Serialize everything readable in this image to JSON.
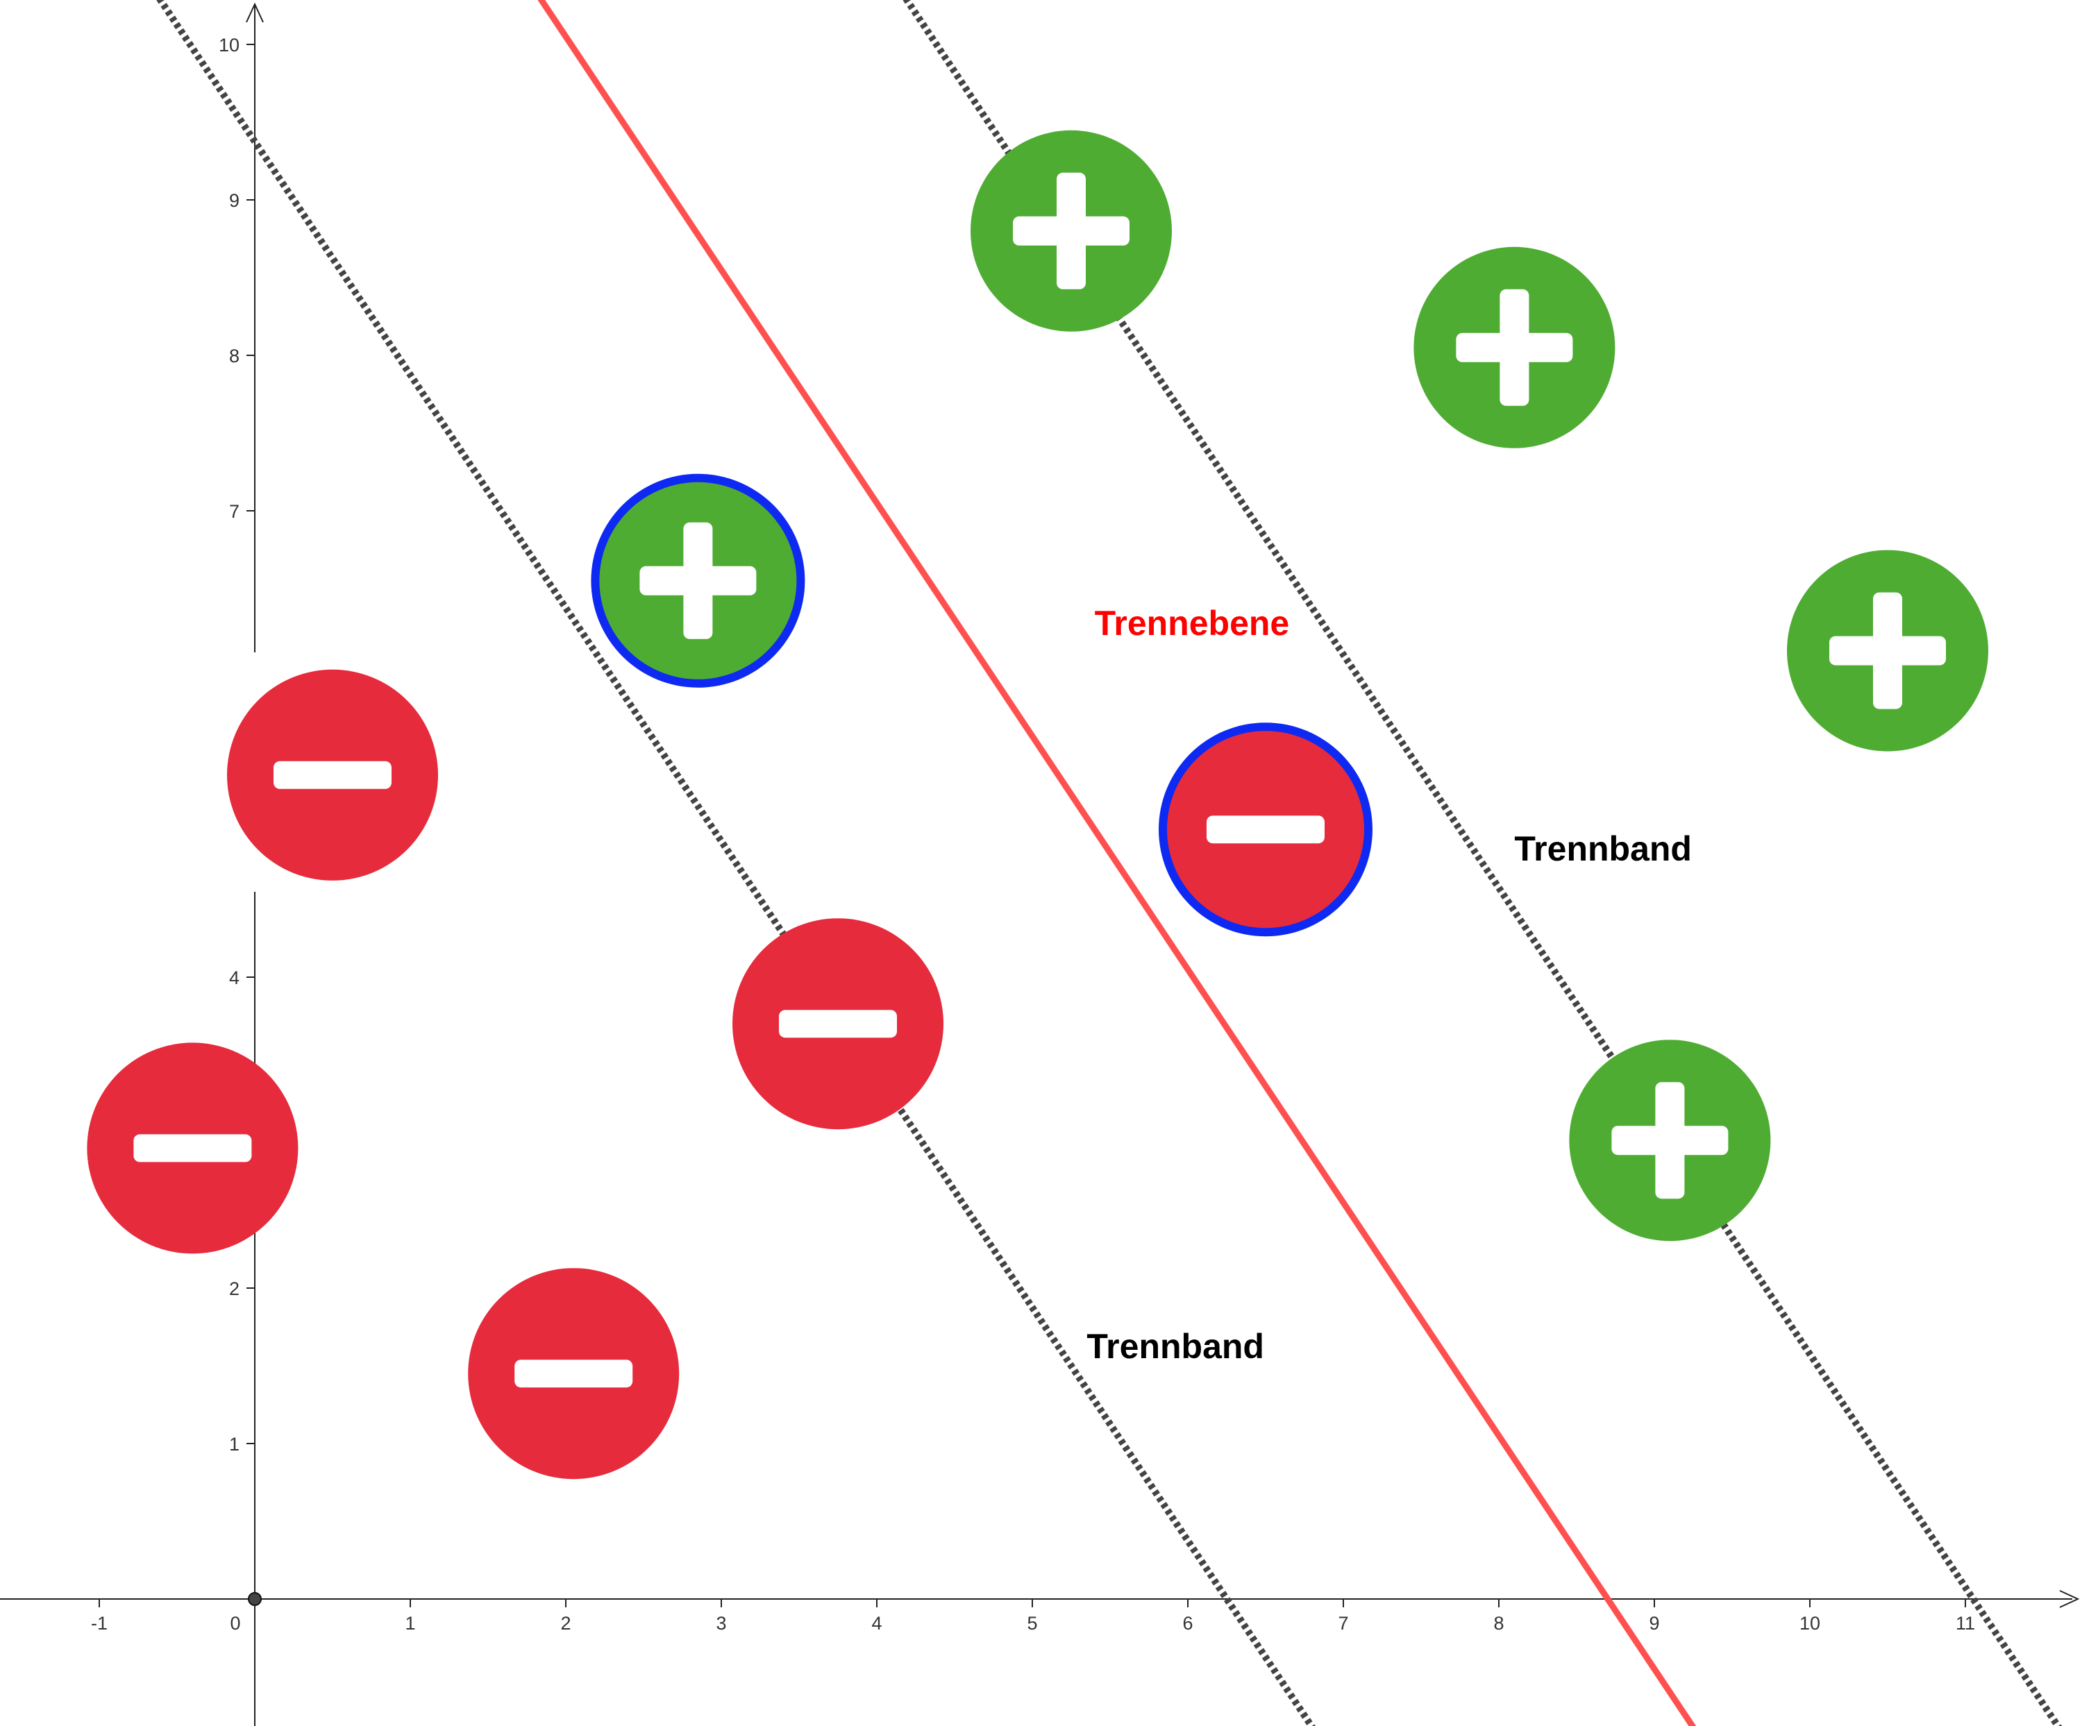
{
  "chart_data": {
    "type": "scatter",
    "x_ticks": [
      "-1",
      "0",
      "1",
      "2",
      "3",
      "4",
      "5",
      "6",
      "7",
      "8",
      "9",
      "10",
      "11"
    ],
    "y_ticks": [
      "1",
      "2",
      "4",
      "7",
      "8",
      "9",
      "10"
    ],
    "xlim": [
      -1.6,
      11.7
    ],
    "ylim": [
      -0.8,
      10.3
    ],
    "lines": [
      {
        "kind": "margin",
        "style": "dotted",
        "x_intercept": 6.25,
        "slope": -1.5
      },
      {
        "kind": "hyperplane",
        "style": "solid",
        "x_intercept": 8.7,
        "slope": -1.5
      },
      {
        "kind": "margin",
        "style": "dotted",
        "x_intercept": 11.05,
        "slope": -1.5
      }
    ],
    "points": [
      {
        "class": "positive",
        "x": 5.25,
        "y": 8.8,
        "support_vector": false
      },
      {
        "class": "positive",
        "x": 8.1,
        "y": 8.05,
        "support_vector": false
      },
      {
        "class": "positive",
        "x": 2.85,
        "y": 6.55,
        "support_vector": true
      },
      {
        "class": "positive",
        "x": 10.5,
        "y": 6.1,
        "support_vector": false
      },
      {
        "class": "positive",
        "x": 9.1,
        "y": 2.95,
        "support_vector": false
      },
      {
        "class": "negative",
        "x": 0.5,
        "y": 5.3,
        "support_vector": false
      },
      {
        "class": "negative",
        "x": 6.5,
        "y": 4.95,
        "support_vector": true
      },
      {
        "class": "negative",
        "x": 3.75,
        "y": 3.7,
        "support_vector": false
      },
      {
        "class": "negative",
        "x": -0.4,
        "y": 2.9,
        "support_vector": false
      },
      {
        "class": "negative",
        "x": 2.05,
        "y": 1.45,
        "support_vector": false
      }
    ],
    "annotations": [
      {
        "text": "Trennebene",
        "x": 5.4,
        "y": 6.2,
        "color": "#ff0000"
      },
      {
        "text": "Trennband",
        "x": 8.1,
        "y": 4.75,
        "color": "#000000"
      },
      {
        "text": "Trennband",
        "x": 5.35,
        "y": 1.55,
        "color": "#000000"
      }
    ],
    "colors": {
      "positive": "#4eac33",
      "negative": "#e62b3c",
      "support_ring": "#0e29f2",
      "hyperplane": "#ff5050",
      "margin": "#444444",
      "axis": "#222222"
    }
  }
}
